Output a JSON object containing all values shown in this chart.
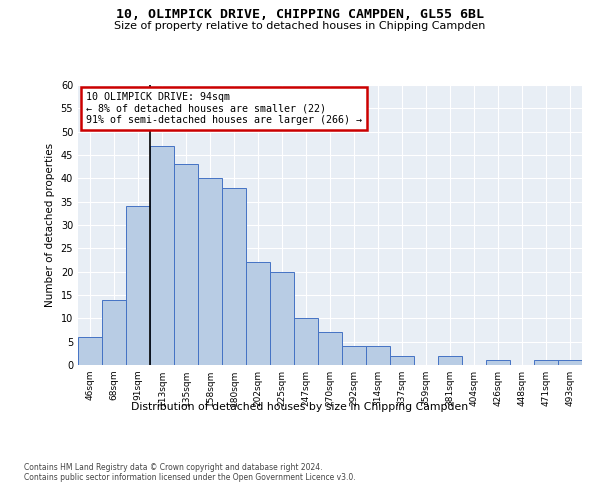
{
  "title": "10, OLIMPICK DRIVE, CHIPPING CAMPDEN, GL55 6BL",
  "subtitle": "Size of property relative to detached houses in Chipping Campden",
  "xlabel": "Distribution of detached houses by size in Chipping Campden",
  "ylabel": "Number of detached properties",
  "bin_labels": [
    "46sqm",
    "68sqm",
    "91sqm",
    "113sqm",
    "135sqm",
    "158sqm",
    "180sqm",
    "202sqm",
    "225sqm",
    "247sqm",
    "270sqm",
    "292sqm",
    "314sqm",
    "337sqm",
    "359sqm",
    "381sqm",
    "404sqm",
    "426sqm",
    "448sqm",
    "471sqm",
    "493sqm"
  ],
  "bar_heights": [
    6,
    14,
    34,
    47,
    43,
    40,
    38,
    22,
    20,
    10,
    7,
    4,
    4,
    2,
    0,
    2,
    0,
    1,
    0,
    1,
    1
  ],
  "bar_color": "#b8cce4",
  "bar_edge_color": "#4472c4",
  "vline_x_index": 2,
  "vline_color": "#000000",
  "annotation_text": "10 OLIMPICK DRIVE: 94sqm\n← 8% of detached houses are smaller (22)\n91% of semi-detached houses are larger (266) →",
  "annotation_box_color": "#ffffff",
  "annotation_box_edge": "#cc0000",
  "ylim": [
    0,
    60
  ],
  "yticks": [
    0,
    5,
    10,
    15,
    20,
    25,
    30,
    35,
    40,
    45,
    50,
    55,
    60
  ],
  "background_color": "#e8eef5",
  "footer_line1": "Contains HM Land Registry data © Crown copyright and database right 2024.",
  "footer_line2": "Contains public sector information licensed under the Open Government Licence v3.0."
}
